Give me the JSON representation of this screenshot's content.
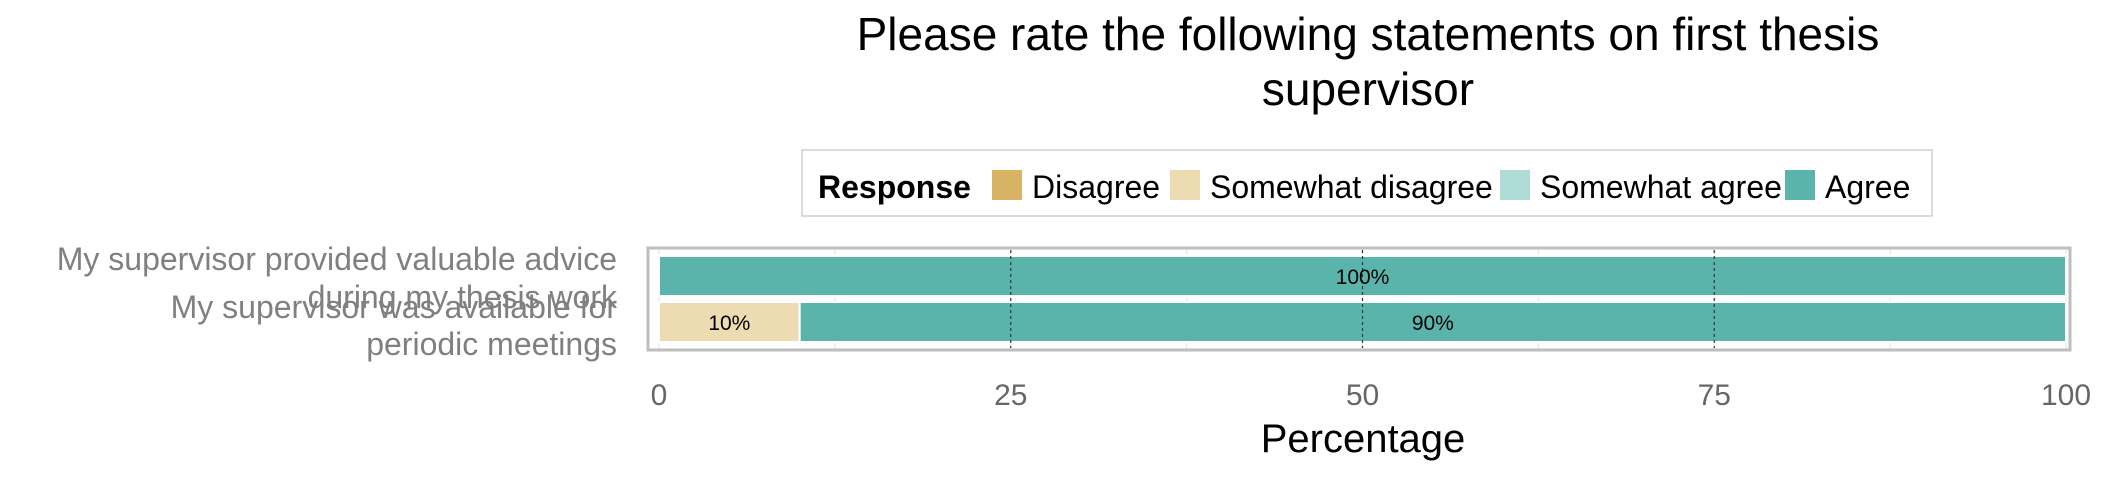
{
  "chart_data": {
    "type": "bar",
    "orientation": "horizontal",
    "stacked": true,
    "title_lines": [
      "Please rate the following statements on first thesis",
      "supervisor"
    ],
    "xlabel": "Percentage",
    "ylabel": "",
    "xlim": [
      0,
      100
    ],
    "x_ticks": [
      "0",
      "25",
      "50",
      "75",
      "100"
    ],
    "x_tick_values": [
      0,
      25,
      50,
      75,
      100
    ],
    "legend": {
      "title": "Response",
      "position": "top",
      "entries": [
        "Disagree",
        "Somewhat disagree",
        "Somewhat agree",
        "Agree"
      ]
    },
    "categories": [
      {
        "label_lines": [
          "My supervisor provided valuable advice",
          "during my thesis work"
        ]
      },
      {
        "label_lines": [
          "My supervisor was available for",
          "periodic meetings"
        ]
      }
    ],
    "series": [
      {
        "name": "Disagree",
        "color": "#d9b364",
        "values": [
          0,
          0
        ],
        "labels": [
          "",
          ""
        ]
      },
      {
        "name": "Somewhat disagree",
        "color": "#eddbb2",
        "values": [
          0,
          10
        ],
        "labels": [
          "",
          "10%"
        ]
      },
      {
        "name": "Somewhat agree",
        "color": "#b0dcd8",
        "values": [
          0,
          0
        ],
        "labels": [
          "",
          ""
        ]
      },
      {
        "name": "Agree",
        "color": "#5ab4ac",
        "values": [
          100,
          90
        ],
        "labels": [
          "100%",
          "90%"
        ]
      }
    ],
    "grid": true
  }
}
